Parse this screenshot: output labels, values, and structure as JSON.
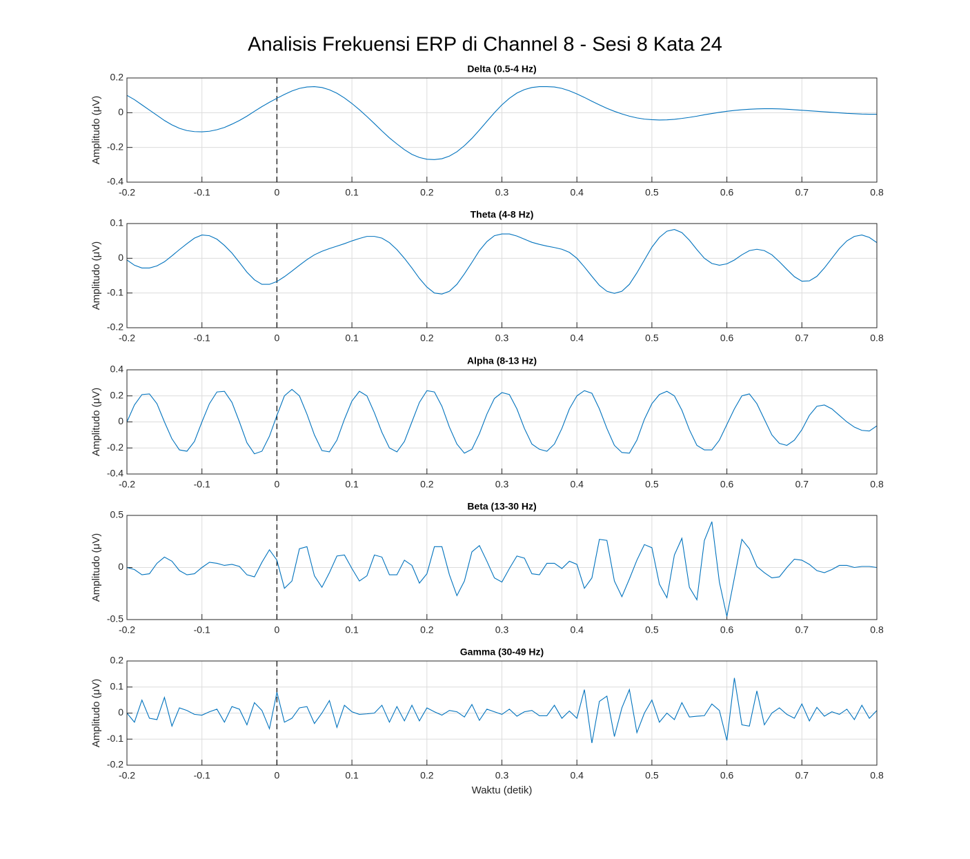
{
  "title": "Analisis Frekuensi ERP di Channel 8 - Sesi 8 Kata 24",
  "chart_data": [
    {
      "type": "line",
      "title": "Delta (0.5-4 Hz)",
      "ylabel": "Amplitudo (μV)",
      "x": [
        -0.2,
        -0.19,
        -0.18,
        -0.17,
        -0.16,
        -0.15,
        -0.14,
        -0.13,
        -0.12,
        -0.11,
        -0.1,
        -0.09,
        -0.08,
        -0.07,
        -0.06,
        -0.05,
        -0.04,
        -0.03,
        -0.02,
        -0.01,
        0,
        0.01,
        0.02,
        0.03,
        0.04,
        0.05,
        0.06,
        0.07,
        0.08,
        0.09,
        0.1,
        0.11,
        0.12,
        0.13,
        0.14,
        0.15,
        0.16,
        0.17,
        0.18,
        0.19,
        0.2,
        0.21,
        0.22,
        0.23,
        0.24,
        0.25,
        0.26,
        0.27,
        0.28,
        0.29,
        0.3,
        0.31,
        0.32,
        0.33,
        0.34,
        0.35,
        0.36,
        0.37,
        0.38,
        0.39,
        0.4,
        0.41,
        0.42,
        0.43,
        0.44,
        0.45,
        0.46,
        0.47,
        0.48,
        0.49,
        0.5,
        0.51,
        0.52,
        0.53,
        0.54,
        0.55,
        0.56,
        0.57,
        0.58,
        0.59,
        0.6,
        0.61,
        0.62,
        0.63,
        0.64,
        0.65,
        0.66,
        0.67,
        0.68,
        0.69,
        0.7,
        0.71,
        0.72,
        0.73,
        0.74,
        0.75,
        0.76,
        0.77,
        0.78,
        0.79,
        0.8
      ],
      "series": [
        {
          "color": "#0072bd",
          "values": [
            0.1,
            0.075,
            0.045,
            0.015,
            -0.015,
            -0.045,
            -0.07,
            -0.09,
            -0.103,
            -0.109,
            -0.11,
            -0.107,
            -0.098,
            -0.085,
            -0.066,
            -0.045,
            -0.02,
            0.008,
            0.035,
            0.06,
            0.083,
            0.105,
            0.125,
            0.14,
            0.148,
            0.15,
            0.145,
            0.132,
            0.112,
            0.085,
            0.053,
            0.017,
            -0.022,
            -0.063,
            -0.105,
            -0.145,
            -0.18,
            -0.213,
            -0.24,
            -0.258,
            -0.268,
            -0.27,
            -0.265,
            -0.25,
            -0.225,
            -0.19,
            -0.148,
            -0.1,
            -0.05,
            0,
            0.045,
            0.083,
            0.113,
            0.133,
            0.145,
            0.15,
            0.15,
            0.148,
            0.14,
            0.126,
            0.108,
            0.088,
            0.066,
            0.045,
            0.025,
            0.008,
            -0.007,
            -0.02,
            -0.03,
            -0.037,
            -0.04,
            -0.042,
            -0.041,
            -0.038,
            -0.033,
            -0.027,
            -0.02,
            -0.012,
            -0.005,
            0.002,
            0.008,
            0.013,
            0.017,
            0.02,
            0.022,
            0.023,
            0.023,
            0.022,
            0.02,
            0.017,
            0.014,
            0.011,
            0.008,
            0.005,
            0.002,
            -0.001,
            -0.004,
            -0.006,
            -0.008,
            -0.009,
            -0.009
          ]
        }
      ],
      "xlim": [
        -0.2,
        0.8
      ],
      "xticks": [
        -0.2,
        -0.1,
        0,
        0.1,
        0.2,
        0.3,
        0.4,
        0.5,
        0.6,
        0.7,
        0.8
      ],
      "ylim": [
        -0.4,
        0.2
      ],
      "yticks": [
        -0.4,
        -0.2,
        0,
        0.2
      ],
      "grid": true,
      "vline": 0
    },
    {
      "type": "line",
      "title": "Theta (4-8 Hz)",
      "ylabel": "Amplitudo (μV)",
      "x": [
        -0.2,
        -0.19,
        -0.18,
        -0.17,
        -0.16,
        -0.15,
        -0.14,
        -0.13,
        -0.12,
        -0.11,
        -0.1,
        -0.09,
        -0.08,
        -0.07,
        -0.06,
        -0.05,
        -0.04,
        -0.03,
        -0.02,
        -0.01,
        0,
        0.01,
        0.02,
        0.03,
        0.04,
        0.05,
        0.06,
        0.07,
        0.08,
        0.09,
        0.1,
        0.11,
        0.12,
        0.13,
        0.14,
        0.15,
        0.16,
        0.17,
        0.18,
        0.19,
        0.2,
        0.21,
        0.22,
        0.23,
        0.24,
        0.25,
        0.26,
        0.27,
        0.28,
        0.29,
        0.3,
        0.31,
        0.32,
        0.33,
        0.34,
        0.35,
        0.36,
        0.37,
        0.38,
        0.39,
        0.4,
        0.41,
        0.42,
        0.43,
        0.44,
        0.45,
        0.46,
        0.47,
        0.48,
        0.49,
        0.5,
        0.51,
        0.52,
        0.53,
        0.54,
        0.55,
        0.56,
        0.57,
        0.58,
        0.59,
        0.6,
        0.61,
        0.62,
        0.63,
        0.64,
        0.65,
        0.66,
        0.67,
        0.68,
        0.69,
        0.7,
        0.71,
        0.72,
        0.73,
        0.74,
        0.75,
        0.76,
        0.77,
        0.78,
        0.79,
        0.8
      ],
      "series": [
        {
          "color": "#0072bd",
          "values": [
            -0.005,
            -0.02,
            -0.028,
            -0.028,
            -0.022,
            -0.01,
            0.007,
            0.025,
            0.042,
            0.058,
            0.067,
            0.065,
            0.055,
            0.037,
            0.015,
            -0.012,
            -0.04,
            -0.062,
            -0.075,
            -0.075,
            -0.067,
            -0.053,
            -0.037,
            -0.02,
            -0.004,
            0.01,
            0.02,
            0.028,
            0.035,
            0.042,
            0.05,
            0.057,
            0.063,
            0.063,
            0.058,
            0.045,
            0.025,
            0,
            -0.028,
            -0.058,
            -0.083,
            -0.1,
            -0.103,
            -0.095,
            -0.075,
            -0.045,
            -0.012,
            0.022,
            0.048,
            0.065,
            0.07,
            0.07,
            0.064,
            0.055,
            0.046,
            0.04,
            0.035,
            0.031,
            0.026,
            0.017,
            0,
            -0.025,
            -0.052,
            -0.078,
            -0.095,
            -0.101,
            -0.095,
            -0.075,
            -0.042,
            -0.005,
            0.032,
            0.06,
            0.078,
            0.083,
            0.074,
            0.052,
            0.025,
            0,
            -0.015,
            -0.02,
            -0.016,
            -0.005,
            0.01,
            0.022,
            0.026,
            0.022,
            0.01,
            -0.01,
            -0.032,
            -0.053,
            -0.066,
            -0.065,
            -0.052,
            -0.028,
            0,
            0.028,
            0.05,
            0.063,
            0.067,
            0.06,
            0.045
          ]
        }
      ],
      "xlim": [
        -0.2,
        0.8
      ],
      "xticks": [
        -0.2,
        -0.1,
        0,
        0.1,
        0.2,
        0.3,
        0.4,
        0.5,
        0.6,
        0.7,
        0.8
      ],
      "ylim": [
        -0.2,
        0.1
      ],
      "yticks": [
        -0.2,
        -0.1,
        0,
        0.1
      ],
      "grid": true,
      "vline": 0
    },
    {
      "type": "line",
      "title": "Alpha (8-13 Hz)",
      "ylabel": "Amplitudo (μV)",
      "x": [
        -0.2,
        -0.19,
        -0.18,
        -0.17,
        -0.16,
        -0.15,
        -0.14,
        -0.13,
        -0.12,
        -0.11,
        -0.1,
        -0.09,
        -0.08,
        -0.07,
        -0.06,
        -0.05,
        -0.04,
        -0.03,
        -0.02,
        -0.01,
        0,
        0.01,
        0.02,
        0.03,
        0.04,
        0.05,
        0.06,
        0.07,
        0.08,
        0.09,
        0.1,
        0.11,
        0.12,
        0.13,
        0.14,
        0.15,
        0.16,
        0.17,
        0.18,
        0.19,
        0.2,
        0.21,
        0.22,
        0.23,
        0.24,
        0.25,
        0.26,
        0.27,
        0.28,
        0.29,
        0.3,
        0.31,
        0.32,
        0.33,
        0.34,
        0.35,
        0.36,
        0.37,
        0.38,
        0.39,
        0.4,
        0.41,
        0.42,
        0.43,
        0.44,
        0.45,
        0.46,
        0.47,
        0.48,
        0.49,
        0.5,
        0.51,
        0.52,
        0.53,
        0.54,
        0.55,
        0.56,
        0.57,
        0.58,
        0.59,
        0.6,
        0.61,
        0.62,
        0.63,
        0.64,
        0.65,
        0.66,
        0.67,
        0.68,
        0.69,
        0.7,
        0.71,
        0.72,
        0.73,
        0.74,
        0.75,
        0.76,
        0.77,
        0.78,
        0.79,
        0.8
      ],
      "series": [
        {
          "color": "#0072bd",
          "values": [
            0,
            0.13,
            0.21,
            0.215,
            0.14,
            0,
            -0.13,
            -0.215,
            -0.225,
            -0.15,
            0,
            0.14,
            0.23,
            0.235,
            0.15,
            0,
            -0.16,
            -0.245,
            -0.225,
            -0.11,
            0.05,
            0.2,
            0.25,
            0.2,
            0.06,
            -0.1,
            -0.22,
            -0.23,
            -0.14,
            0.02,
            0.16,
            0.235,
            0.2,
            0.07,
            -0.08,
            -0.2,
            -0.23,
            -0.15,
            0,
            0.15,
            0.24,
            0.23,
            0.12,
            -0.04,
            -0.17,
            -0.24,
            -0.21,
            -0.09,
            0.06,
            0.18,
            0.225,
            0.21,
            0.1,
            -0.05,
            -0.17,
            -0.21,
            -0.225,
            -0.17,
            -0.05,
            0.1,
            0.2,
            0.24,
            0.22,
            0.1,
            -0.05,
            -0.18,
            -0.235,
            -0.24,
            -0.14,
            0.02,
            0.14,
            0.21,
            0.235,
            0.2,
            0.09,
            -0.06,
            -0.18,
            -0.215,
            -0.215,
            -0.14,
            -0.02,
            0.1,
            0.2,
            0.215,
            0.14,
            0.02,
            -0.1,
            -0.165,
            -0.18,
            -0.14,
            -0.06,
            0.05,
            0.12,
            0.13,
            0.1,
            0.05,
            0,
            -0.04,
            -0.065,
            -0.07,
            -0.03
          ]
        }
      ],
      "xlim": [
        -0.2,
        0.8
      ],
      "xticks": [
        -0.2,
        -0.1,
        0,
        0.1,
        0.2,
        0.3,
        0.4,
        0.5,
        0.6,
        0.7,
        0.8
      ],
      "ylim": [
        -0.4,
        0.4
      ],
      "yticks": [
        -0.4,
        -0.2,
        0,
        0.2,
        0.4
      ],
      "grid": true,
      "vline": 0
    },
    {
      "type": "line",
      "title": "Beta (13-30 Hz)",
      "ylabel": "Amplitudo (μV)",
      "x": [
        -0.2,
        -0.19,
        -0.18,
        -0.17,
        -0.16,
        -0.15,
        -0.14,
        -0.13,
        -0.12,
        -0.11,
        -0.1,
        -0.09,
        -0.08,
        -0.07,
        -0.06,
        -0.05,
        -0.04,
        -0.03,
        -0.02,
        -0.01,
        0,
        0.01,
        0.02,
        0.03,
        0.04,
        0.05,
        0.06,
        0.07,
        0.08,
        0.09,
        0.1,
        0.11,
        0.12,
        0.13,
        0.14,
        0.15,
        0.16,
        0.17,
        0.18,
        0.19,
        0.2,
        0.21,
        0.22,
        0.23,
        0.24,
        0.25,
        0.26,
        0.27,
        0.28,
        0.29,
        0.3,
        0.31,
        0.32,
        0.33,
        0.34,
        0.35,
        0.36,
        0.37,
        0.38,
        0.39,
        0.4,
        0.41,
        0.42,
        0.43,
        0.44,
        0.45,
        0.46,
        0.47,
        0.48,
        0.49,
        0.5,
        0.51,
        0.52,
        0.53,
        0.54,
        0.55,
        0.56,
        0.57,
        0.58,
        0.59,
        0.6,
        0.61,
        0.62,
        0.63,
        0.64,
        0.65,
        0.66,
        0.67,
        0.68,
        0.69,
        0.7,
        0.71,
        0.72,
        0.73,
        0.74,
        0.75,
        0.76,
        0.77,
        0.78,
        0.79,
        0.8
      ],
      "series": [
        {
          "color": "#0072bd",
          "values": [
            0,
            -0.02,
            -0.07,
            -0.06,
            0.04,
            0.1,
            0.06,
            -0.03,
            -0.07,
            -0.06,
            0,
            0.05,
            0.04,
            0.02,
            0.03,
            0.01,
            -0.07,
            -0.09,
            0.05,
            0.17,
            0.07,
            -0.2,
            -0.13,
            0.18,
            0.2,
            -0.08,
            -0.19,
            -0.05,
            0.11,
            0.12,
            -0.01,
            -0.13,
            -0.08,
            0.12,
            0.1,
            -0.07,
            -0.07,
            0.07,
            0.02,
            -0.15,
            -0.06,
            0.2,
            0.2,
            -0.07,
            -0.27,
            -0.13,
            0.15,
            0.21,
            0.06,
            -0.1,
            -0.14,
            -0.01,
            0.11,
            0.09,
            -0.06,
            -0.07,
            0.04,
            0.04,
            -0.01,
            0.06,
            0.03,
            -0.2,
            -0.1,
            0.27,
            0.26,
            -0.13,
            -0.28,
            -0.11,
            0.07,
            0.22,
            0.19,
            -0.16,
            -0.29,
            0.12,
            0.28,
            -0.19,
            -0.31,
            0.26,
            0.44,
            -0.14,
            -0.47,
            -0.1,
            0.27,
            0.18,
            0.01,
            -0.05,
            -0.1,
            -0.09,
            0,
            0.08,
            0.07,
            0.03,
            -0.03,
            -0.05,
            -0.02,
            0.02,
            0.02,
            0,
            0.01,
            0.01,
            0
          ]
        }
      ],
      "xlim": [
        -0.2,
        0.8
      ],
      "xticks": [
        -0.2,
        -0.1,
        0,
        0.1,
        0.2,
        0.3,
        0.4,
        0.5,
        0.6,
        0.7,
        0.8
      ],
      "ylim": [
        -0.5,
        0.5
      ],
      "yticks": [
        -0.5,
        0,
        0.5
      ],
      "grid": true,
      "vline": 0
    },
    {
      "type": "line",
      "title": "Gamma (30-49 Hz)",
      "ylabel": "Amplitudo (μV)",
      "xlabel": "Waktu (detik)",
      "x": [
        -0.2,
        -0.19,
        -0.18,
        -0.17,
        -0.16,
        -0.15,
        -0.14,
        -0.13,
        -0.12,
        -0.11,
        -0.1,
        -0.09,
        -0.08,
        -0.07,
        -0.06,
        -0.05,
        -0.04,
        -0.03,
        -0.02,
        -0.01,
        0,
        0.01,
        0.02,
        0.03,
        0.04,
        0.05,
        0.06,
        0.07,
        0.08,
        0.09,
        0.1,
        0.11,
        0.12,
        0.13,
        0.14,
        0.15,
        0.16,
        0.17,
        0.18,
        0.19,
        0.2,
        0.21,
        0.22,
        0.23,
        0.24,
        0.25,
        0.26,
        0.27,
        0.28,
        0.29,
        0.3,
        0.31,
        0.32,
        0.33,
        0.34,
        0.35,
        0.36,
        0.37,
        0.38,
        0.39,
        0.4,
        0.41,
        0.42,
        0.43,
        0.44,
        0.45,
        0.46,
        0.47,
        0.48,
        0.49,
        0.5,
        0.51,
        0.52,
        0.53,
        0.54,
        0.55,
        0.56,
        0.57,
        0.58,
        0.59,
        0.6,
        0.61,
        0.62,
        0.63,
        0.64,
        0.65,
        0.66,
        0.67,
        0.68,
        0.69,
        0.7,
        0.71,
        0.72,
        0.73,
        0.74,
        0.75,
        0.76,
        0.77,
        0.78,
        0.79,
        0.8
      ],
      "series": [
        {
          "color": "#0072bd",
          "values": [
            0,
            -0.035,
            0.05,
            -0.02,
            -0.025,
            0.06,
            -0.05,
            0.02,
            0.01,
            -0.005,
            -0.008,
            0.005,
            0.015,
            -0.035,
            0.025,
            0.015,
            -0.045,
            0.04,
            0.01,
            -0.06,
            0.08,
            -0.035,
            -0.02,
            0.02,
            0.025,
            -0.04,
            0,
            0.048,
            -0.055,
            0.03,
            0.005,
            -0.005,
            -0.003,
            0,
            0.03,
            -0.035,
            0.025,
            -0.03,
            0.03,
            -0.03,
            0.02,
            0.005,
            -0.008,
            0.01,
            0.005,
            -0.015,
            0.033,
            -0.028,
            0.015,
            0.005,
            -0.005,
            0.015,
            -0.012,
            0.005,
            0.01,
            -0.01,
            -0.01,
            0.03,
            -0.02,
            0.008,
            -0.02,
            0.09,
            -0.115,
            0.045,
            0.065,
            -0.09,
            0.02,
            0.09,
            -0.075,
            0,
            0.05,
            -0.035,
            0,
            -0.025,
            0.04,
            -0.015,
            -0.012,
            -0.01,
            0.035,
            0.01,
            -0.105,
            0.135,
            -0.045,
            -0.05,
            0.085,
            -0.045,
            0,
            0.02,
            -0.005,
            -0.02,
            0.035,
            -0.03,
            0.022,
            -0.012,
            0.005,
            -0.005,
            0.015,
            -0.025,
            0.03,
            -0.02,
            0.01
          ]
        }
      ],
      "xlim": [
        -0.2,
        0.8
      ],
      "xticks": [
        -0.2,
        -0.1,
        0,
        0.1,
        0.2,
        0.3,
        0.4,
        0.5,
        0.6,
        0.7,
        0.8
      ],
      "ylim": [
        -0.2,
        0.2
      ],
      "yticks": [
        -0.2,
        -0.1,
        0,
        0.1,
        0.2
      ],
      "grid": true,
      "vline": 0
    }
  ]
}
